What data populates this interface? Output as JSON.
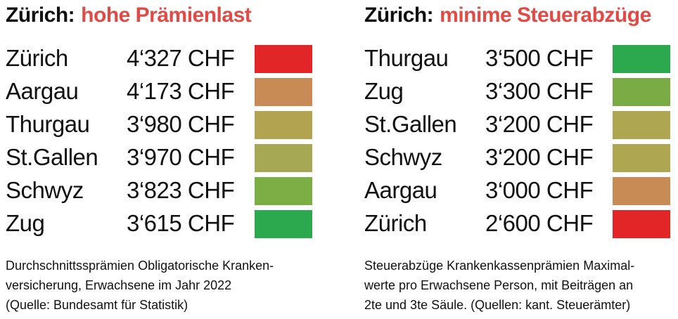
{
  "panels": [
    {
      "title": {
        "prefix": "Zürich:",
        "highlight": "hohe Prämienlast"
      },
      "rows": [
        {
          "name": "Zürich",
          "amount": "4‘327 CHF",
          "color": "#e22527"
        },
        {
          "name": "Aargau",
          "amount": "4‘173 CHF",
          "color": "#c98b55"
        },
        {
          "name": "Thurgau",
          "amount": "3‘980 CHF",
          "color": "#b2a350"
        },
        {
          "name": "St.Gallen",
          "amount": "3‘970 CHF",
          "color": "#a6a853"
        },
        {
          "name": "Schwyz",
          "amount": "3‘823 CHF",
          "color": "#7dae46"
        },
        {
          "name": "Zug",
          "amount": "3‘615 CHF",
          "color": "#2ca94f"
        }
      ],
      "note": [
        "Durchschnittssprämien Obligatorische Kranken-",
        "versicherung, Erwachsene im Jahr 2022",
        "(Quelle: Bundesamt für Statistik)"
      ]
    },
    {
      "title": {
        "prefix": "Zürich:",
        "highlight": "minime Steuerabzüge"
      },
      "rows": [
        {
          "name": "Thurgau",
          "amount": "3‘500 CHF",
          "color": "#2ca94f"
        },
        {
          "name": "Zug",
          "amount": "3‘300 CHF",
          "color": "#7aab45"
        },
        {
          "name": "St.Gallen",
          "amount": "3‘200 CHF",
          "color": "#aea650"
        },
        {
          "name": "Schwyz",
          "amount": "3‘200 CHF",
          "color": "#aea650"
        },
        {
          "name": "Aargau",
          "amount": "3‘000 CHF",
          "color": "#c98b55"
        },
        {
          "name": "Zürich",
          "amount": "2‘600 CHF",
          "color": "#e22527"
        }
      ],
      "note": [
        "Steuerabzüge Krankenkassenprämien Maximal-",
        "werte pro Erwachsene Person, mit Beiträgen an",
        "2te und 3te Säule. (Quellen: kant. Steuerämter)"
      ]
    }
  ]
}
